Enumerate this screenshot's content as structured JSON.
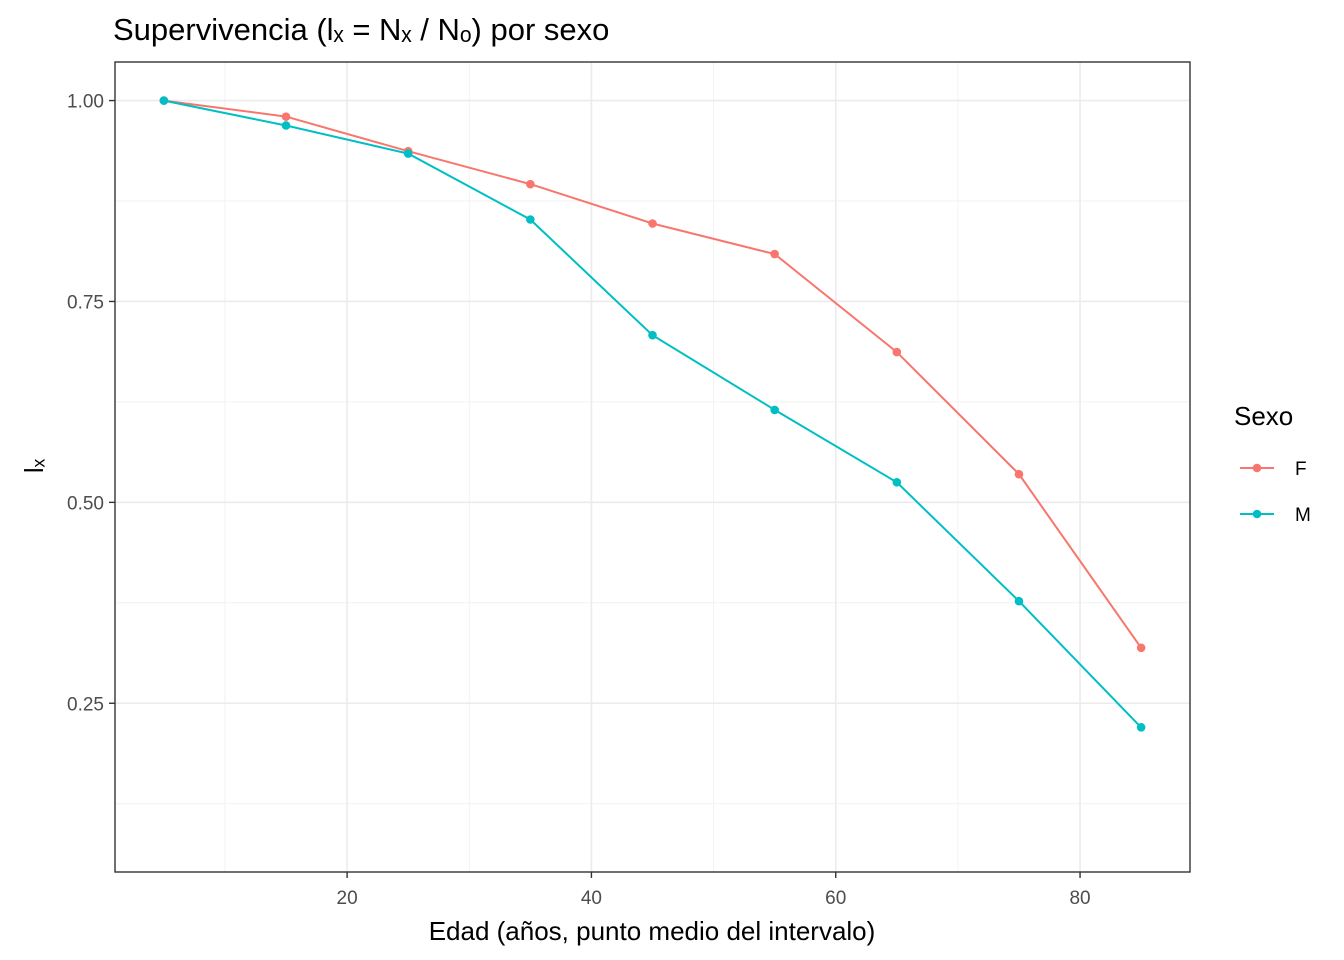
{
  "chart_data": {
    "type": "line",
    "title": "Supervivencia (lₓ = Nₓ / Nₒ) por sexo",
    "xlabel": "Edad (años, punto medio del intervalo)",
    "ylabel": "lₓ",
    "xlim": [
      1,
      89
    ],
    "ylim": [
      0.04,
      1.048
    ],
    "x_ticks": [
      20,
      40,
      60,
      80
    ],
    "x_tick_labels": [
      "20",
      "40",
      "60",
      "80"
    ],
    "y_ticks": [
      0.25,
      0.5,
      0.75,
      1.0
    ],
    "y_tick_labels": [
      "0.25",
      "0.50",
      "0.75",
      "1.00"
    ],
    "grid": true,
    "legend": {
      "title": "Sexo",
      "placement": "right"
    },
    "x": [
      5,
      15,
      25,
      35,
      45,
      55,
      65,
      75,
      85
    ],
    "series": [
      {
        "name": "F",
        "color": "#F8766D",
        "values": [
          1.0,
          0.98,
          0.937,
          0.896,
          0.847,
          0.809,
          0.687,
          0.535,
          0.319
        ]
      },
      {
        "name": "M",
        "color": "#00BFC4",
        "values": [
          1.0,
          0.969,
          0.934,
          0.852,
          0.708,
          0.615,
          0.525,
          0.377,
          0.22
        ]
      }
    ]
  }
}
